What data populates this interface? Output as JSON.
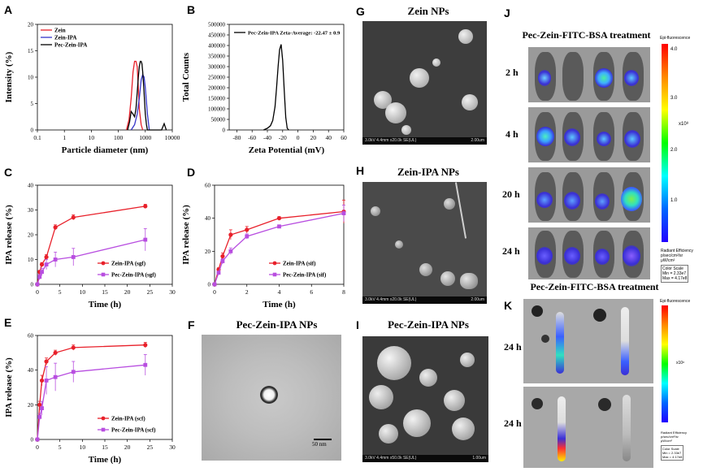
{
  "panels": {
    "A": {
      "letter": "A",
      "xlabel": "Particle diameter (nm)",
      "ylabel": "Intensity (%)"
    },
    "B": {
      "letter": "B",
      "xlabel": "Zeta Potential (mV)",
      "ylabel": "Total Counts"
    },
    "C": {
      "letter": "C",
      "xlabel": "Time (h)",
      "ylabel": "IPA release (%)"
    },
    "D": {
      "letter": "D",
      "xlabel": "Time (h)",
      "ylabel": "IPA release (%)"
    },
    "E": {
      "letter": "E",
      "xlabel": "Time (h)",
      "ylabel": "IPA release (%)"
    },
    "F": {
      "letter": "F",
      "title": "Pec-Zein-IPA NPs",
      "scalebar": "50 nm"
    },
    "G": {
      "letter": "G",
      "title": "Zein NPs",
      "bar_left": "3.0kV 4.4mm x20.0k SE(UL)",
      "bar_right": "2.00um"
    },
    "H": {
      "letter": "H",
      "title": "Zein-IPA NPs",
      "bar_left": "3.0kV 4.4mm x20.0k SE(UL)",
      "bar_right": "2.00um"
    },
    "I": {
      "letter": "I",
      "title": "Pec-Zein-IPA NPs",
      "bar_left": "3.0kV 4.4mm x50.0k SE(UL)",
      "bar_right": "1.00um"
    },
    "J": {
      "letter": "J",
      "title": "Pec-Zein-FITC-BSA treatment",
      "times": [
        "2 h",
        "4 h",
        "20 h",
        "24 h"
      ],
      "colorbar_title": "Epi-fluorescence",
      "colorbar_ticks": [
        "4.0",
        "3.0",
        "2.0",
        "1.0"
      ],
      "colorbar_exp": "x10⁸",
      "units": [
        "Radiant Efficiency",
        "p/sec/cm²/sr",
        "μW/cm²"
      ],
      "scale": [
        "Color Scale",
        "Min = 2.33e7",
        "Max = 4.17e8"
      ]
    },
    "K": {
      "letter": "K",
      "title": "Pec-Zein-FITC-BSA treatment",
      "times": [
        "24 h",
        "24 h"
      ],
      "colorbar_title": "Epi-fluorescence",
      "colorbar_exp": "x10⁸",
      "units": [
        "Radiant Efficiency",
        "p/sec/cm²/sr",
        "μW/cm²"
      ],
      "scale": [
        "Color Scale",
        "Min = 2.33e7",
        "Max = 4.17e8"
      ]
    }
  },
  "chart_data": [
    {
      "panel": "A",
      "type": "line",
      "xscale": "log",
      "xlim": [
        0.1,
        10000
      ],
      "ylim": [
        0,
        20
      ],
      "xticks": [
        "0.1",
        "1",
        "10",
        "100",
        "1000",
        "10000"
      ],
      "yticks": [
        "0",
        "5",
        "10",
        "15",
        "20"
      ],
      "xlabel": "Particle diameter (nm)",
      "ylabel": "Intensity (%)",
      "legend": "top-left",
      "series": [
        {
          "name": "Zein",
          "color": "#e8202a",
          "x": [
            200,
            250,
            300,
            350,
            400,
            450,
            500,
            550,
            600,
            700,
            800
          ],
          "y": [
            0,
            2,
            6,
            11,
            13,
            13,
            12,
            8,
            4,
            1,
            0
          ]
        },
        {
          "name": "Zein-IPA",
          "color": "#3535c8",
          "x": [
            300,
            400,
            500,
            600,
            700,
            800,
            900,
            1000,
            1200,
            1400
          ],
          "y": [
            0,
            1,
            3,
            6,
            9.5,
            10.5,
            10,
            8,
            3,
            0
          ]
        },
        {
          "name": "Pec-Zein-IPA",
          "color": "#000000",
          "x": [
            220,
            260,
            300,
            350,
            400,
            450,
            500,
            550,
            600,
            650,
            700,
            750,
            800,
            900,
            1000,
            1100,
            1200,
            4000,
            5000,
            6000
          ],
          "y": [
            0,
            1.5,
            3.5,
            3,
            2.5,
            4,
            7,
            10,
            12,
            13,
            13,
            12.5,
            11,
            7,
            3,
            1,
            0,
            0,
            1.2,
            0
          ]
        }
      ]
    },
    {
      "panel": "B",
      "type": "line",
      "xlim": [
        -90,
        60
      ],
      "ylim": [
        0,
        500000
      ],
      "xticks": [
        "-80",
        "-60",
        "-40",
        "-20",
        "0",
        "20",
        "40",
        "60"
      ],
      "yticks": [
        "0",
        "50000",
        "100000",
        "150000",
        "200000",
        "250000",
        "300000",
        "350000",
        "400000",
        "450000",
        "500000"
      ],
      "xlabel": "Zeta Potential (mV)",
      "ylabel": "Total Counts",
      "legend": "top-right",
      "series": [
        {
          "name": "Pec-Zein-IPA Zeta-Average: -22.47 ± 0.9",
          "color": "#000000",
          "x": [
            -45,
            -40,
            -36,
            -33,
            -30,
            -28,
            -26,
            -24,
            -22,
            -20,
            -18,
            -16,
            -14,
            -12
          ],
          "y": [
            0,
            8000,
            20000,
            45000,
            110000,
            200000,
            300000,
            380000,
            405000,
            330000,
            190000,
            60000,
            8000,
            0
          ]
        }
      ]
    },
    {
      "panel": "C",
      "type": "line",
      "xlim": [
        0,
        30
      ],
      "ylim": [
        0,
        40
      ],
      "xticks": [
        "0",
        "5",
        "10",
        "15",
        "20",
        "25",
        "30"
      ],
      "yticks": [
        "0",
        "10",
        "20",
        "30",
        "40"
      ],
      "xlabel": "Time (h)",
      "ylabel": "IPA release (%)",
      "legend": "bottom-right",
      "series": [
        {
          "name": "Zein-IPA  (sgf)",
          "color": "#e8202a",
          "marker": "circle",
          "x": [
            0,
            0.5,
            1,
            2,
            4,
            8,
            24
          ],
          "y": [
            0,
            5,
            8,
            11,
            23,
            27,
            31.5
          ],
          "err": [
            0,
            0.6,
            0.8,
            1,
            1,
            1,
            0.8
          ]
        },
        {
          "name": "Pec-Zein-IPA (sgf)",
          "color": "#b84ee0",
          "marker": "square",
          "x": [
            0,
            0.5,
            1,
            2,
            4,
            8,
            24
          ],
          "y": [
            0,
            3,
            5,
            8,
            10,
            11,
            18
          ],
          "err": [
            0,
            1,
            1.5,
            2,
            3,
            3.5,
            4.5
          ]
        }
      ]
    },
    {
      "panel": "D",
      "type": "line",
      "xlim": [
        0,
        8
      ],
      "ylim": [
        0,
        60
      ],
      "xticks": [
        "0",
        "2",
        "4",
        "6",
        "8"
      ],
      "yticks": [
        "0",
        "20",
        "40",
        "60"
      ],
      "xlabel": "Time (h)",
      "ylabel": "IPA release (%)",
      "legend": "bottom-right",
      "series": [
        {
          "name": "Zein-IPA (sif)",
          "color": "#e8202a",
          "marker": "circle",
          "x": [
            0,
            0.25,
            0.5,
            1,
            2,
            4,
            8
          ],
          "y": [
            0,
            9,
            17,
            30,
            33,
            40,
            44
          ],
          "err": [
            0,
            1,
            2,
            3,
            2,
            1,
            7
          ]
        },
        {
          "name": "Pec-Zein-IPA (sif)",
          "color": "#b84ee0",
          "marker": "square",
          "x": [
            0,
            0.25,
            0.5,
            1,
            2,
            4,
            8
          ],
          "y": [
            0,
            7,
            14,
            20,
            29,
            35,
            43
          ],
          "err": [
            0,
            1,
            1.5,
            2,
            1.5,
            1,
            5
          ]
        }
      ]
    },
    {
      "panel": "E",
      "type": "line",
      "xlim": [
        0,
        30
      ],
      "ylim": [
        0,
        60
      ],
      "xticks": [
        "0",
        "5",
        "10",
        "15",
        "20",
        "25",
        "30"
      ],
      "yticks": [
        "0",
        "20",
        "40",
        "60"
      ],
      "xlabel": "Time (h)",
      "ylabel": "IPA release (%)",
      "legend": "bottom-right",
      "series": [
        {
          "name": "Zein-IPA (scf)",
          "color": "#e8202a",
          "marker": "circle",
          "x": [
            0,
            0.5,
            1,
            2,
            4,
            8,
            24
          ],
          "y": [
            0,
            20,
            34,
            45,
            50,
            53,
            54.5
          ],
          "err": [
            0,
            2,
            3,
            2,
            1.5,
            1.5,
            1.5
          ]
        },
        {
          "name": "Pec-Zein-IPA (scf)",
          "color": "#b84ee0",
          "marker": "square",
          "x": [
            0,
            0.5,
            1,
            2,
            4,
            8,
            24
          ],
          "y": [
            0,
            13,
            18,
            34,
            36,
            39,
            43
          ],
          "err": [
            0,
            2,
            4,
            8,
            8,
            6,
            6
          ]
        }
      ]
    }
  ]
}
